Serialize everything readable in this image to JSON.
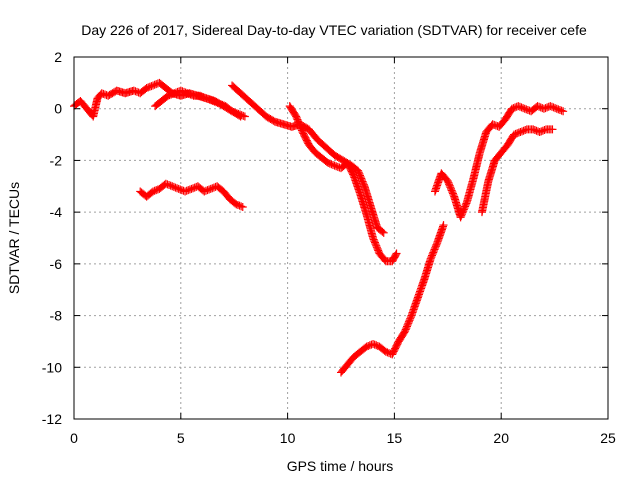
{
  "chart_data": {
    "type": "scatter",
    "title": "Day 226 of 2017, Sidereal Day-to-day VTEC variation (SDTVAR) for receiver cefe",
    "xlabel": "GPS time / hours",
    "ylabel": "SDTVAR / TECUs",
    "xlim": [
      0,
      25
    ],
    "ylim": [
      -12,
      2
    ],
    "xticks": [
      0,
      5,
      10,
      15,
      20,
      25
    ],
    "yticks": [
      -12,
      -10,
      -8,
      -6,
      -4,
      -2,
      0,
      2
    ],
    "grid": true,
    "marker": "plus",
    "color": "#ff0000",
    "series": [
      {
        "x": [
          0.0,
          0.3,
          0.6,
          0.9,
          1.1,
          1.3,
          1.6,
          2.0,
          2.4,
          2.8,
          3.1,
          3.4,
          3.7,
          4.0,
          4.3,
          4.6,
          5.0,
          5.4,
          5.8,
          6.2,
          6.6,
          7.0,
          7.4,
          7.8
        ],
        "y": [
          0.1,
          0.3,
          0.0,
          -0.3,
          0.4,
          0.6,
          0.5,
          0.7,
          0.6,
          0.7,
          0.6,
          0.8,
          0.9,
          1.0,
          0.8,
          0.6,
          0.5,
          0.6,
          0.5,
          0.4,
          0.3,
          0.1,
          -0.1,
          -0.3
        ]
      },
      {
        "x": [
          3.8,
          4.1,
          4.4,
          4.7,
          5.0,
          5.3,
          5.6,
          5.9,
          6.2,
          6.5,
          6.8,
          7.1,
          7.4,
          7.7,
          8.0
        ],
        "y": [
          0.1,
          0.3,
          0.5,
          0.6,
          0.7,
          0.6,
          0.5,
          0.5,
          0.4,
          0.3,
          0.2,
          0.1,
          -0.1,
          -0.2,
          -0.3
        ]
      },
      {
        "x": [
          3.1,
          3.4,
          3.7,
          4.0,
          4.3,
          4.6,
          4.9,
          5.2,
          5.5,
          5.8,
          6.1,
          6.4,
          6.7,
          7.0,
          7.3,
          7.6,
          7.9
        ],
        "y": [
          -3.2,
          -3.4,
          -3.2,
          -3.1,
          -2.9,
          -3.0,
          -3.1,
          -3.2,
          -3.1,
          -3.0,
          -3.2,
          -3.1,
          -3.0,
          -3.2,
          -3.5,
          -3.7,
          -3.8
        ]
      },
      {
        "x": [
          7.4,
          7.8,
          8.2,
          8.6,
          9.0,
          9.4,
          9.8,
          10.2,
          10.6,
          11.0,
          11.4,
          11.8,
          12.2,
          12.6,
          13.0,
          13.3,
          13.6,
          13.9,
          14.2,
          14.5
        ],
        "y": [
          0.9,
          0.6,
          0.3,
          0.0,
          -0.3,
          -0.5,
          -0.6,
          -0.7,
          -0.6,
          -0.8,
          -1.2,
          -1.5,
          -1.8,
          -2.0,
          -2.2,
          -2.4,
          -3.0,
          -3.8,
          -4.6,
          -4.8
        ]
      },
      {
        "x": [
          10.1,
          10.4,
          10.7,
          11.0,
          11.3,
          11.6,
          11.9,
          12.2,
          12.5,
          12.8,
          13.1,
          13.4,
          13.7,
          14.0,
          14.3,
          14.6,
          14.9,
          15.1
        ],
        "y": [
          0.1,
          -0.3,
          -0.9,
          -1.4,
          -1.7,
          -1.9,
          -2.1,
          -2.2,
          -2.3,
          -2.1,
          -2.6,
          -3.3,
          -4.1,
          -5.0,
          -5.6,
          -5.9,
          -5.9,
          -5.6
        ]
      },
      {
        "x": [
          12.5,
          12.8,
          13.1,
          13.4,
          13.7,
          14.0,
          14.3,
          14.6,
          14.9,
          15.2,
          15.5,
          15.8,
          16.1,
          16.4,
          16.7,
          17.0,
          17.3
        ],
        "y": [
          -10.2,
          -9.9,
          -9.6,
          -9.4,
          -9.2,
          -9.1,
          -9.2,
          -9.4,
          -9.5,
          -9.0,
          -8.6,
          -8.0,
          -7.3,
          -6.6,
          -5.8,
          -5.2,
          -4.5
        ]
      },
      {
        "x": [
          16.9,
          17.2,
          17.5,
          17.8,
          18.1,
          18.4,
          18.7,
          19.0,
          19.3,
          19.6,
          19.9,
          20.2,
          20.5,
          20.8,
          21.1,
          21.4,
          21.7,
          22.0,
          22.3,
          22.6,
          22.9
        ],
        "y": [
          -3.2,
          -2.5,
          -2.8,
          -3.4,
          -4.2,
          -3.6,
          -2.7,
          -1.7,
          -0.9,
          -0.6,
          -0.7,
          -0.4,
          0.0,
          0.1,
          0.0,
          -0.1,
          0.1,
          0.0,
          0.1,
          0.0,
          -0.1
        ]
      },
      {
        "x": [
          19.1,
          19.4,
          19.7,
          20.0,
          20.3,
          20.6,
          20.9,
          21.2,
          21.5,
          21.8,
          22.1,
          22.4
        ],
        "y": [
          -4.0,
          -2.8,
          -2.0,
          -1.7,
          -1.4,
          -1.0,
          -0.9,
          -0.8,
          -0.8,
          -0.9,
          -0.8,
          -0.8
        ]
      }
    ]
  }
}
